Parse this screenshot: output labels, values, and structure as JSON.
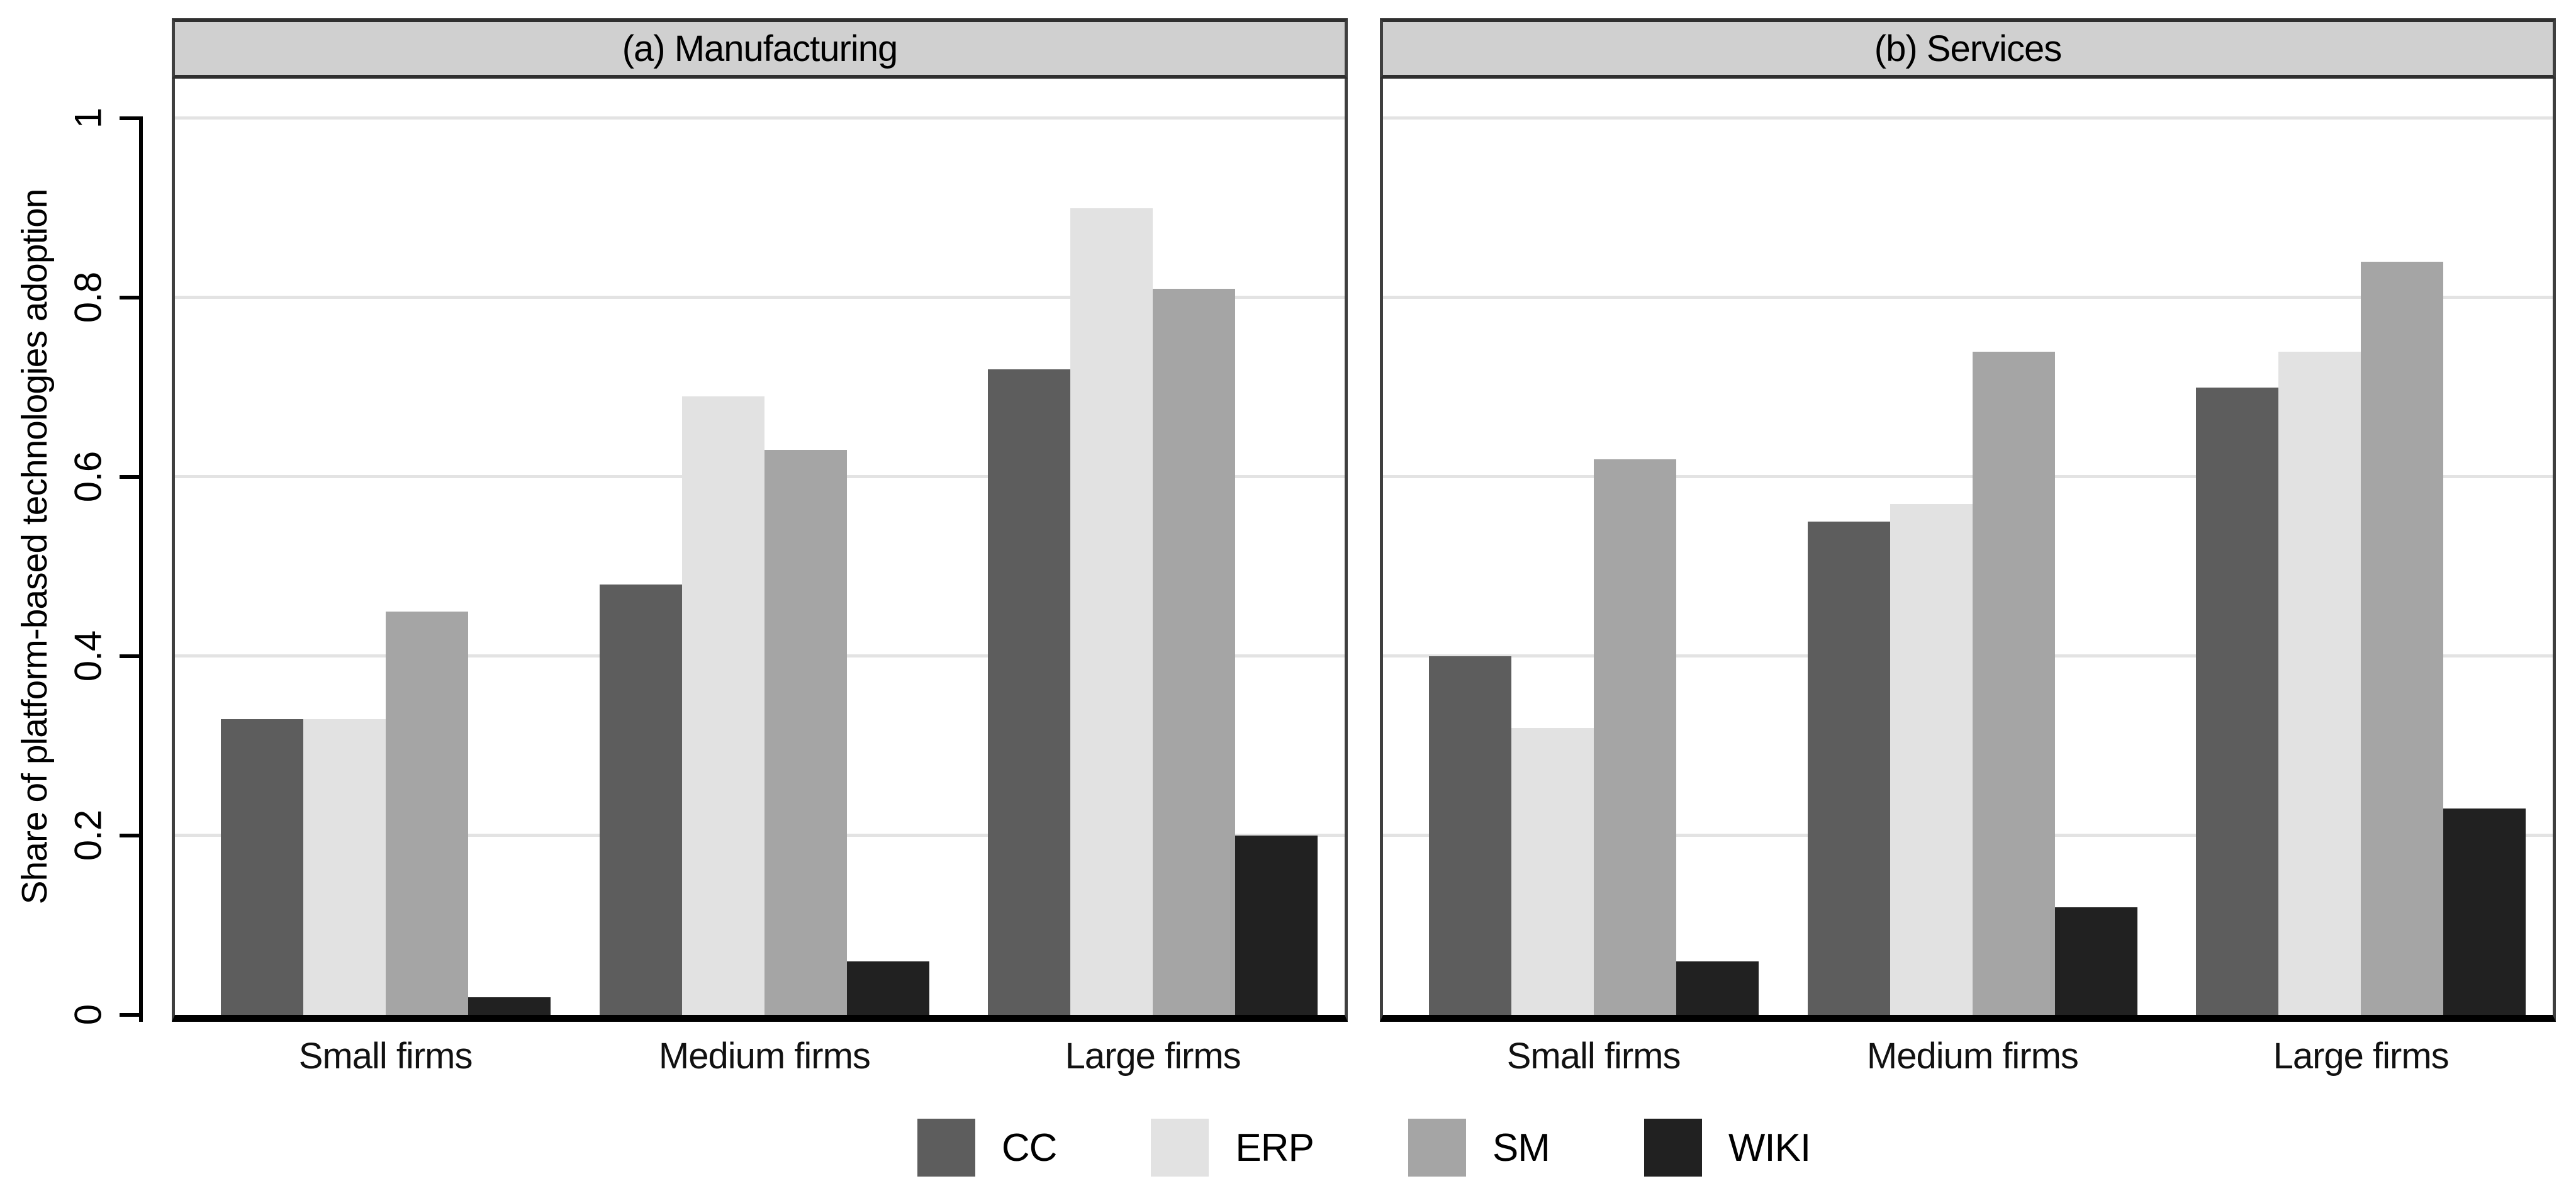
{
  "figure": {
    "ylabel": "Share of platform-based technologies adoption",
    "background": "#ffffff",
    "colors": {
      "CC": "#5d5d5d",
      "ERP": "#e2e2e2",
      "SM": "#a5a5a5",
      "WIKI": "#212121",
      "header_fill": "#d0d0d0",
      "header_border": "#2f2f2f",
      "panel_border": "#3f3f3f",
      "gridline": "#e3e3e3",
      "axis_line": "#000000"
    },
    "legend": {
      "position": "bottom-center",
      "entries": [
        "CC",
        "ERP",
        "SM",
        "WIKI"
      ]
    }
  },
  "chart_data": [
    {
      "type": "bar",
      "title": "(a) Manufacturing",
      "categories": [
        "Small firms",
        "Medium firms",
        "Large firms"
      ],
      "series": [
        {
          "name": "CC",
          "values": [
            0.33,
            0.48,
            0.72
          ]
        },
        {
          "name": "ERP",
          "values": [
            0.33,
            0.69,
            0.9
          ]
        },
        {
          "name": "SM",
          "values": [
            0.45,
            0.63,
            0.81
          ]
        },
        {
          "name": "WIKI",
          "values": [
            0.02,
            0.06,
            0.2
          ]
        }
      ],
      "ylabel": "Share of platform-based technologies adoption",
      "ylim": [
        0,
        1.05
      ],
      "yticks": [
        0,
        0.2,
        0.4,
        0.6,
        0.8,
        1
      ],
      "ytick_labels": [
        "0",
        "0.2",
        "0.4",
        "0.6",
        "0.8",
        "1"
      ],
      "grid": true,
      "legend_position": "bottom"
    },
    {
      "type": "bar",
      "title": "(b) Services",
      "categories": [
        "Small firms",
        "Medium firms",
        "Large firms"
      ],
      "series": [
        {
          "name": "CC",
          "values": [
            0.4,
            0.55,
            0.7
          ]
        },
        {
          "name": "ERP",
          "values": [
            0.32,
            0.57,
            0.74
          ]
        },
        {
          "name": "SM",
          "values": [
            0.62,
            0.74,
            0.84
          ]
        },
        {
          "name": "WIKI",
          "values": [
            0.06,
            0.12,
            0.23
          ]
        }
      ],
      "ylabel": "Share of platform-based technologies adoption",
      "ylim": [
        0,
        1.05
      ],
      "yticks": [
        0,
        0.2,
        0.4,
        0.6,
        0.8,
        1
      ],
      "ytick_labels": [
        "0",
        "0.2",
        "0.4",
        "0.6",
        "0.8",
        "1"
      ],
      "grid": true,
      "legend_position": "bottom"
    }
  ]
}
